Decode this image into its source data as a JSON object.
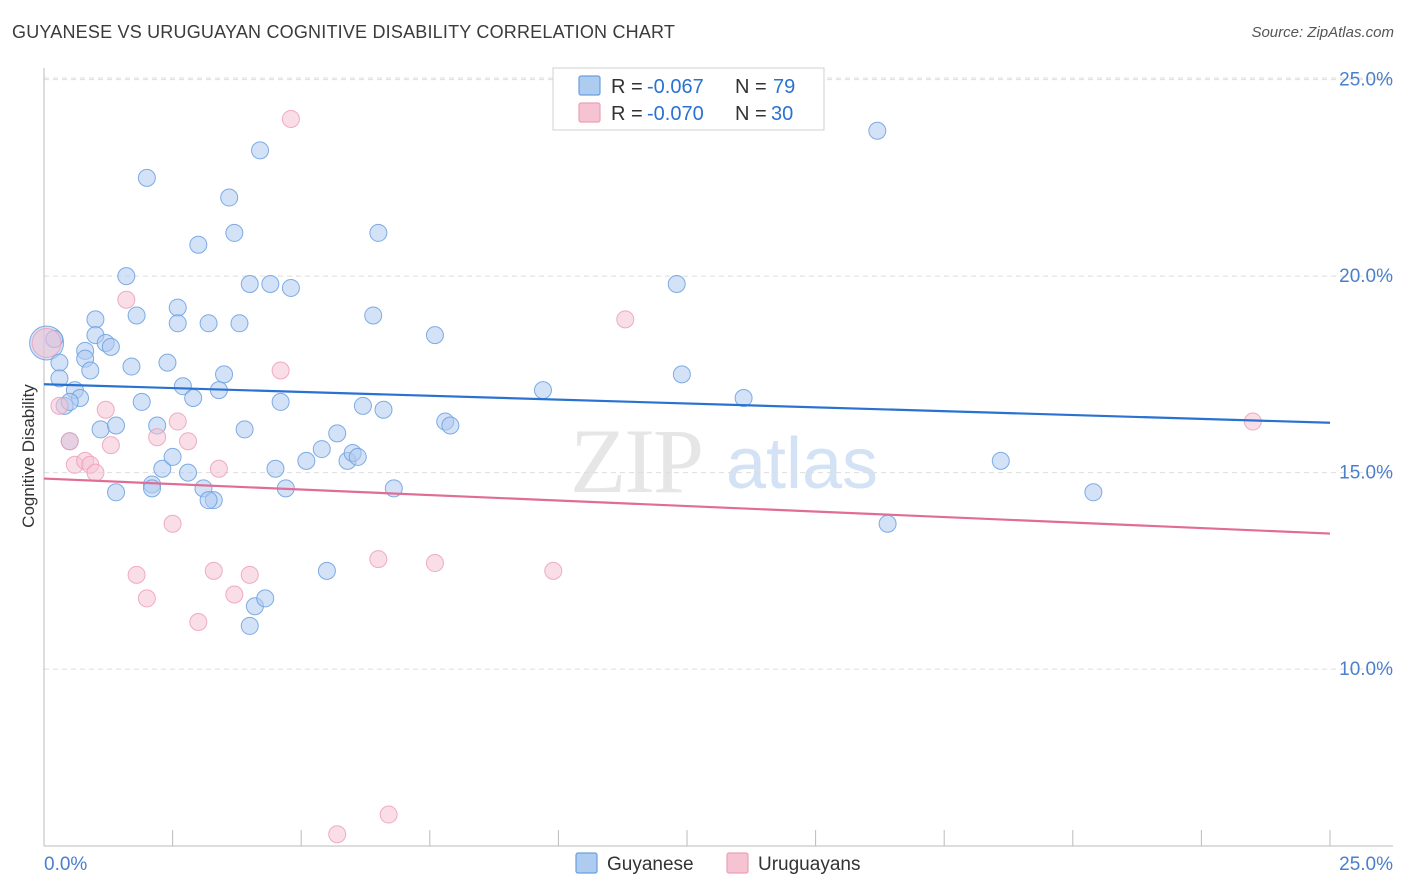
{
  "title": "GUYANESE VS URUGUAYAN COGNITIVE DISABILITY CORRELATION CHART",
  "source": "Source: ZipAtlas.com",
  "watermark": {
    "zip": "ZIP",
    "atlas": "atlas"
  },
  "colors": {
    "blue": "#6a9fe0",
    "blue_fill": "#aecbf0",
    "blue_line": "#2a72d0",
    "pink": "#ec9fb8",
    "pink_fill": "#f6c3d3",
    "pink_line": "#e06d96",
    "tick": "#4a7fcc",
    "grid": "#dddddd"
  },
  "legend": {
    "series": [
      {
        "r_label": "R =",
        "r_value": "-0.067",
        "n_label": "N =",
        "n_value": "79"
      },
      {
        "r_label": "R =",
        "r_value": "-0.070",
        "n_label": "N =",
        "n_value": "30"
      }
    ]
  },
  "chart_data": {
    "type": "scatter",
    "title": "GUYANESE VS URUGUAYAN COGNITIVE DISABILITY CORRELATION CHART",
    "xlabel": "",
    "ylabel": "Cognitive Disability",
    "xlim": [
      0,
      25
    ],
    "ylim": [
      5.5,
      25.5
    ],
    "x_tick_labels": [
      "0.0%",
      "25.0%"
    ],
    "y_ticks": [
      10,
      15,
      20,
      25
    ],
    "y_tick_labels": [
      "10.0%",
      "15.0%",
      "20.0%",
      "25.0%"
    ],
    "x_ticks": [
      0,
      2.5,
      5,
      7.5,
      10,
      12.5,
      15,
      17.5,
      20,
      22.5,
      25
    ],
    "series": [
      {
        "name": "Guyanese",
        "trend": {
          "x": [
            0,
            25
          ],
          "y": [
            17.25,
            16.27
          ]
        },
        "points": [
          [
            0.05,
            18.3,
            2.0
          ],
          [
            0.3,
            17.8,
            1
          ],
          [
            0.3,
            17.4,
            1
          ],
          [
            0.4,
            16.7,
            1
          ],
          [
            0.5,
            15.8,
            1
          ],
          [
            0.6,
            17.1,
            1
          ],
          [
            0.7,
            16.9,
            1
          ],
          [
            0.8,
            18.1,
            1
          ],
          [
            0.8,
            17.9,
            1
          ],
          [
            0.9,
            17.6,
            1
          ],
          [
            1.0,
            18.9,
            1
          ],
          [
            1.0,
            18.5,
            1
          ],
          [
            1.2,
            18.3,
            1
          ],
          [
            1.3,
            18.2,
            1
          ],
          [
            1.1,
            16.1,
            1
          ],
          [
            1.4,
            16.2,
            1
          ],
          [
            1.6,
            20.0,
            1
          ],
          [
            1.7,
            17.7,
            1
          ],
          [
            1.8,
            19.0,
            1
          ],
          [
            1.9,
            16.8,
            1
          ],
          [
            2.0,
            22.5,
            1
          ],
          [
            2.1,
            14.7,
            1
          ],
          [
            2.2,
            16.2,
            1
          ],
          [
            2.3,
            15.1,
            1
          ],
          [
            2.4,
            17.8,
            1
          ],
          [
            2.5,
            15.4,
            1
          ],
          [
            2.6,
            19.2,
            1
          ],
          [
            2.6,
            18.8,
            1
          ],
          [
            2.7,
            17.2,
            1
          ],
          [
            2.8,
            15.0,
            1
          ],
          [
            2.9,
            16.9,
            1
          ],
          [
            3.0,
            20.8,
            1
          ],
          [
            3.1,
            14.6,
            1
          ],
          [
            3.2,
            18.8,
            1
          ],
          [
            3.3,
            14.3,
            1
          ],
          [
            3.4,
            17.1,
            1
          ],
          [
            3.5,
            17.5,
            1
          ],
          [
            3.6,
            22.0,
            1
          ],
          [
            3.7,
            21.1,
            1
          ],
          [
            3.8,
            18.8,
            1
          ],
          [
            3.9,
            16.1,
            1
          ],
          [
            4.0,
            19.8,
            1
          ],
          [
            4.1,
            11.6,
            1
          ],
          [
            4.2,
            23.2,
            1
          ],
          [
            4.3,
            11.8,
            1
          ],
          [
            4.4,
            19.8,
            1
          ],
          [
            4.5,
            15.1,
            1
          ],
          [
            4.6,
            16.8,
            1
          ],
          [
            4.7,
            14.6,
            1
          ],
          [
            4.8,
            19.7,
            1
          ],
          [
            5.1,
            15.3,
            1
          ],
          [
            5.4,
            15.6,
            1
          ],
          [
            5.5,
            12.5,
            1
          ],
          [
            5.7,
            16.0,
            1
          ],
          [
            5.9,
            15.3,
            1
          ],
          [
            6.0,
            15.5,
            1
          ],
          [
            6.1,
            15.4,
            1
          ],
          [
            6.2,
            16.7,
            1
          ],
          [
            6.4,
            19.0,
            1
          ],
          [
            6.5,
            21.1,
            1
          ],
          [
            6.6,
            16.6,
            1
          ],
          [
            6.8,
            14.6,
            1
          ],
          [
            7.6,
            18.5,
            1
          ],
          [
            7.8,
            16.3,
            1
          ],
          [
            7.9,
            16.2,
            1
          ],
          [
            9.7,
            17.1,
            1
          ],
          [
            12.3,
            19.8,
            1
          ],
          [
            12.4,
            17.5,
            1
          ],
          [
            13.6,
            16.9,
            1
          ],
          [
            16.2,
            23.7,
            1
          ],
          [
            16.4,
            13.7,
            1
          ],
          [
            18.6,
            15.3,
            1
          ],
          [
            20.4,
            14.5,
            1
          ],
          [
            1.4,
            14.5,
            1
          ],
          [
            2.1,
            14.6,
            1
          ],
          [
            3.2,
            14.3,
            1
          ],
          [
            4.0,
            11.1,
            1
          ],
          [
            0.2,
            18.4,
            1
          ],
          [
            0.5,
            16.8,
            1
          ]
        ]
      },
      {
        "name": "Uruguayans",
        "trend": {
          "x": [
            0,
            25
          ],
          "y": [
            14.85,
            13.45
          ]
        },
        "points": [
          [
            0.05,
            18.3,
            1.7
          ],
          [
            0.3,
            16.7,
            1
          ],
          [
            0.5,
            15.8,
            1
          ],
          [
            0.6,
            15.2,
            1
          ],
          [
            0.8,
            15.3,
            1
          ],
          [
            0.9,
            15.2,
            1
          ],
          [
            1.0,
            15.0,
            1
          ],
          [
            1.2,
            16.6,
            1
          ],
          [
            1.3,
            15.7,
            1
          ],
          [
            1.6,
            19.4,
            1
          ],
          [
            1.8,
            12.4,
            1
          ],
          [
            2.0,
            11.8,
            1
          ],
          [
            2.2,
            15.9,
            1
          ],
          [
            2.5,
            13.7,
            1
          ],
          [
            2.6,
            16.3,
            1
          ],
          [
            2.8,
            15.8,
            1
          ],
          [
            3.0,
            11.2,
            1
          ],
          [
            3.3,
            12.5,
            1
          ],
          [
            3.4,
            15.1,
            1
          ],
          [
            3.7,
            11.9,
            1
          ],
          [
            4.0,
            12.4,
            1
          ],
          [
            4.6,
            17.6,
            1
          ],
          [
            4.8,
            24.0,
            1
          ],
          [
            5.7,
            5.8,
            1
          ],
          [
            6.5,
            12.8,
            1
          ],
          [
            6.7,
            6.3,
            1
          ],
          [
            7.6,
            12.7,
            1
          ],
          [
            9.9,
            12.5,
            1
          ],
          [
            11.3,
            18.9,
            1
          ],
          [
            23.5,
            16.3,
            1
          ]
        ]
      }
    ]
  },
  "bottom_legend": [
    {
      "label": "Guyanese"
    },
    {
      "label": "Uruguayans"
    }
  ]
}
